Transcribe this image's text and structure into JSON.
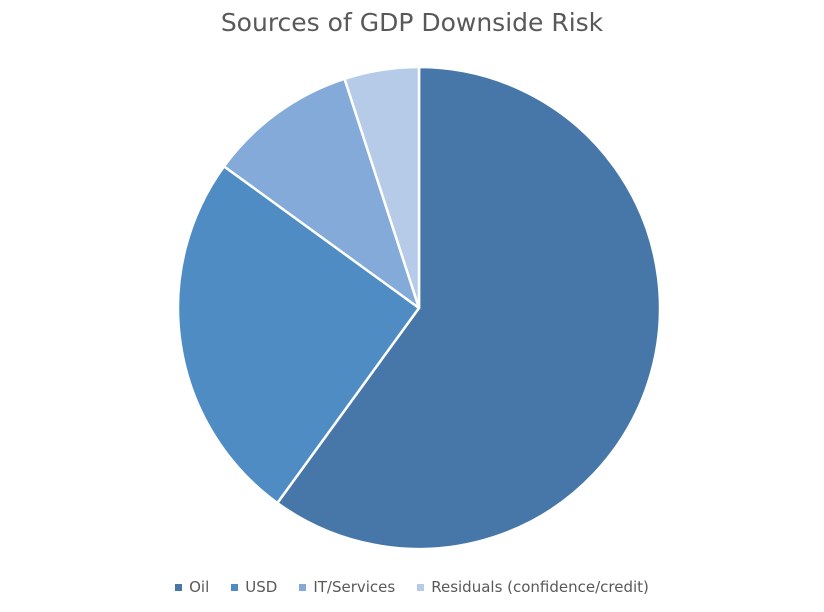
{
  "chart_data": {
    "type": "pie",
    "title": "Sources of GDP Downside Risk",
    "legend_position": "bottom",
    "categories": [
      "Oil",
      "USD",
      "IT/Services",
      "Residuals (confidence/credit)"
    ],
    "values": [
      60,
      25,
      10,
      5
    ],
    "colors": [
      "#4677a8",
      "#4f8cc4",
      "#83aad8",
      "#b5cbe8"
    ],
    "start_angle_deg": 0,
    "direction": "clockwise"
  }
}
